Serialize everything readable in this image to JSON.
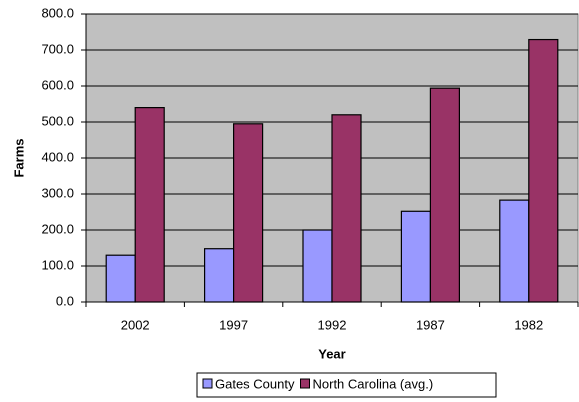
{
  "chart_data": {
    "type": "bar",
    "x_label": "Year",
    "y_label": "Farms",
    "categories": [
      "2002",
      "1997",
      "1992",
      "1987",
      "1982"
    ],
    "series": [
      {
        "name": "Gates County",
        "color": "#9999ff",
        "values": [
          130,
          148,
          200,
          252,
          283
        ]
      },
      {
        "name": "North Carolina (avg.)",
        "color": "#993366",
        "values": [
          540,
          495,
          520,
          594,
          729
        ]
      }
    ],
    "ylim": [
      0,
      800
    ],
    "yticks": [
      {
        "value": 0,
        "label": "0.0"
      },
      {
        "value": 100,
        "label": "100.0"
      },
      {
        "value": 200,
        "label": "200.0"
      },
      {
        "value": 300,
        "label": "300.0"
      },
      {
        "value": 400,
        "label": "400.0"
      },
      {
        "value": 500,
        "label": "500.0"
      },
      {
        "value": 600,
        "label": "600.0"
      },
      {
        "value": 700,
        "label": "700.0"
      },
      {
        "value": 800,
        "label": "800.0"
      }
    ],
    "grid": true,
    "legend": "bottom"
  }
}
